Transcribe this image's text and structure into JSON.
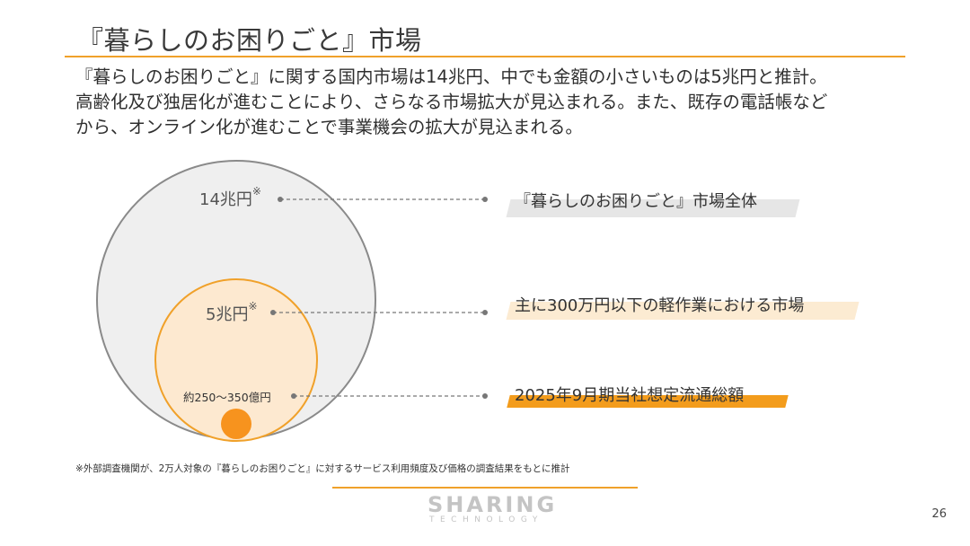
{
  "slide": {
    "title": "『暮らしのお困りごと』市場",
    "intro_lines": [
      "『暮らしのお困りごと』に関する国内市場は14兆円、中でも金額の小さいものは5兆円と推計。",
      "高齢化及び独居化が進むことにより、さらなる市場拡大が見込まれる。また、既存の電話帳など",
      "から、オンライン化が進むことで事業機会の拡大が見込まれる。"
    ],
    "page_number": "26"
  },
  "diagram": {
    "large": {
      "value": "14兆円",
      "mark": "※",
      "description": "『暮らしのお困りごと』市場全体"
    },
    "medium": {
      "value": "5兆円",
      "mark": "※",
      "description": "主に300万円以下の軽作業における市場"
    },
    "small": {
      "value": "約250～350億円",
      "description": "2025年9月期当社想定流通総額"
    }
  },
  "footnote": "※外部調査機関が、2万人対象の『暮らしのお困りごと』に対するサービス利用頻度及び価格の調査結果をもとに推計",
  "logo": {
    "main": "SHARING",
    "sub": "TECHNOLOGY"
  },
  "colors": {
    "accent": "#f0a12a",
    "large_fill": "#efefef",
    "large_stroke": "#8a8a8a",
    "medium_fill": "#fde9d0",
    "small_fill": "#f7931e"
  }
}
